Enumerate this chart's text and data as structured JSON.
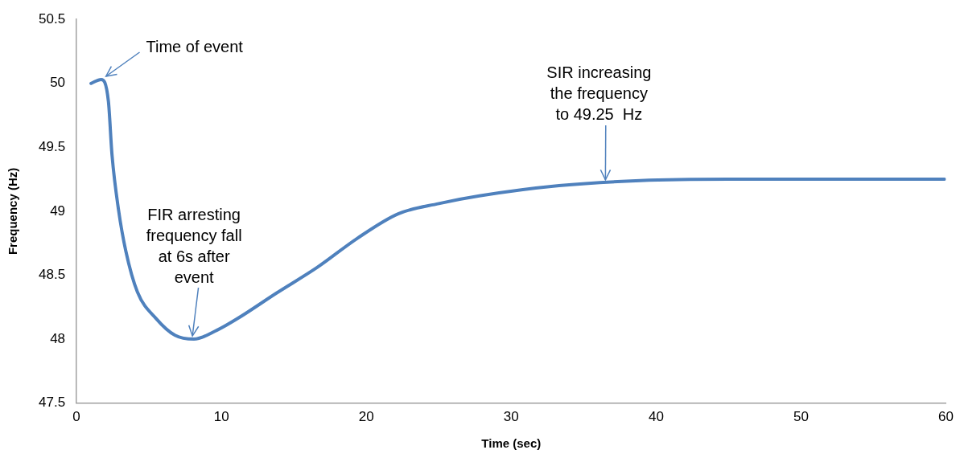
{
  "chart_data": {
    "type": "line",
    "xlabel": "Time (sec)",
    "ylabel": "Frequency (Hz)",
    "series": [
      {
        "color": "#4f81bd",
        "x": [
          1,
          1.7,
          2.2,
          2.45,
          2.9,
          3.4,
          4.2,
          5.5,
          6.8,
          8.1,
          9.7,
          11.1,
          13.8,
          16.6,
          19.4,
          22.2,
          25,
          27.8,
          33.3,
          38.9,
          45,
          59.9
        ],
        "values": [
          50.0,
          50.03,
          49.86,
          49.44,
          49.01,
          48.69,
          48.37,
          48.16,
          48.03,
          48.0,
          48.07,
          48.16,
          48.36,
          48.56,
          48.79,
          48.98,
          49.06,
          49.12,
          49.2,
          49.24,
          49.25,
          49.25
        ]
      }
    ],
    "xlim": [
      0,
      60
    ],
    "xticks": [
      0,
      10,
      20,
      30,
      40,
      50,
      60
    ],
    "ylim": [
      47.5,
      50.5
    ],
    "yticks": [
      47.5,
      48,
      48.5,
      49,
      49.5,
      50,
      50.5
    ],
    "grid": false,
    "legend": false,
    "marker": "none",
    "line_style": "solid",
    "annotations": [
      {
        "text": "Time of event",
        "x": 1.7,
        "y": 50.03
      },
      {
        "text": "FIR arresting\nfrequency fall\nat 6s after\nevent",
        "x": 8,
        "y": 48.0
      },
      {
        "text": "SIR increasing\nthe frequency\nto 49.25  Hz",
        "x": 36.5,
        "y": 49.22
      }
    ]
  }
}
